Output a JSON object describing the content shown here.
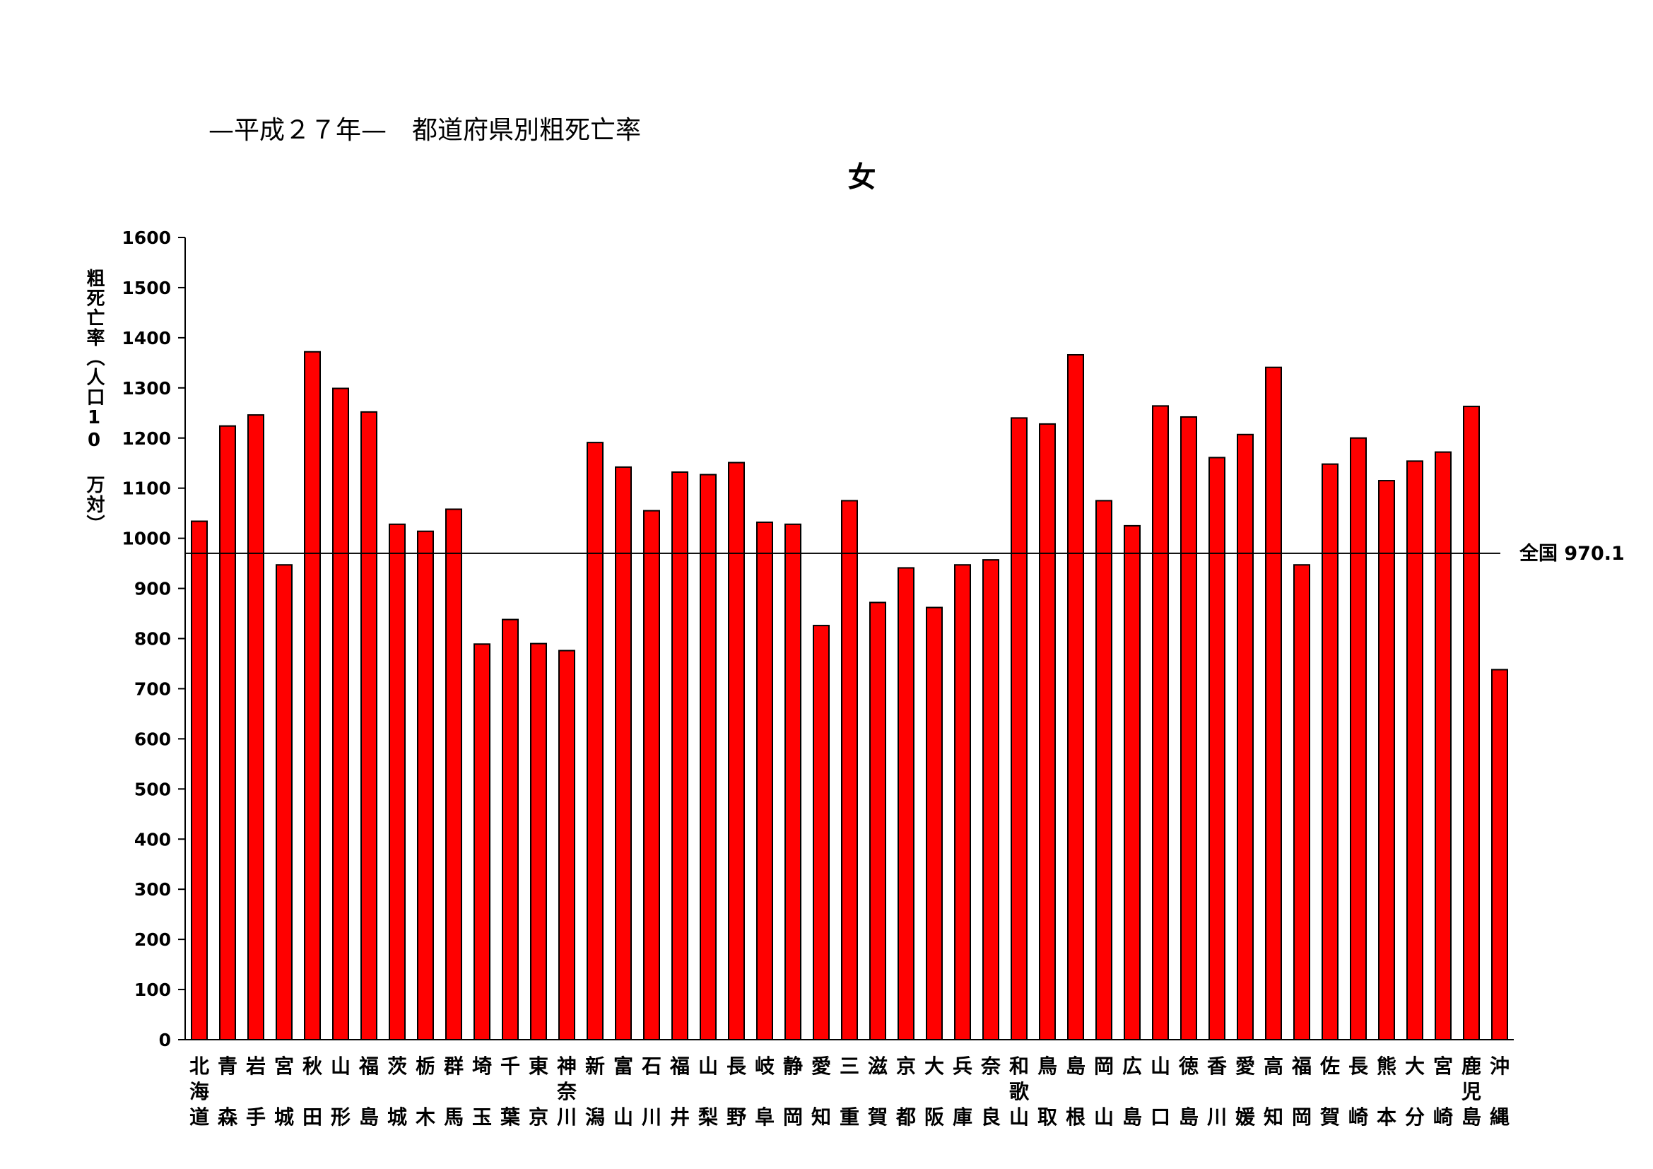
{
  "header": {
    "title": "—平成２７年—　都道府県別粗死亡率"
  },
  "chart_data": {
    "type": "bar",
    "title": "女",
    "ylabel": "粗死亡率（人口10 万対）",
    "xlabel": "",
    "ylim": [
      0,
      1600
    ],
    "yticks": [
      0,
      100,
      200,
      300,
      400,
      500,
      600,
      700,
      800,
      900,
      1000,
      1100,
      1200,
      1300,
      1400,
      1500,
      1600
    ],
    "categories": [
      "北海道",
      "青森",
      "岩手",
      "宮城",
      "秋田",
      "山形",
      "福島",
      "茨城",
      "栃木",
      "群馬",
      "埼玉",
      "千葉",
      "東京",
      "神奈川",
      "新潟",
      "富山",
      "石川",
      "福井",
      "山梨",
      "長野",
      "岐阜",
      "静岡",
      "愛知",
      "三重",
      "滋賀",
      "京都",
      "大阪",
      "兵庫",
      "奈良",
      "和歌山",
      "鳥取",
      "島根",
      "岡山",
      "広島",
      "山口",
      "徳島",
      "香川",
      "愛媛",
      "高知",
      "福岡",
      "佐賀",
      "長崎",
      "熊本",
      "大分",
      "宮崎",
      "鹿児島",
      "沖縄"
    ],
    "values": [
      1034,
      1224,
      1246,
      947,
      1372,
      1299,
      1252,
      1028,
      1014,
      1058,
      789,
      838,
      790,
      776,
      1191,
      1142,
      1055,
      1132,
      1127,
      1151,
      1032,
      1028,
      826,
      1075,
      872,
      941,
      862,
      947,
      957,
      1240,
      1228,
      1366,
      1075,
      1025,
      1264,
      1242,
      1161,
      1207,
      1341,
      947,
      1148,
      1200,
      1115,
      1154,
      1172,
      1263,
      738
    ],
    "bar_color": "#ff0000",
    "reference_line": {
      "value": 970.1,
      "label": "全国 970.1"
    },
    "grid": false,
    "legend": "none"
  }
}
